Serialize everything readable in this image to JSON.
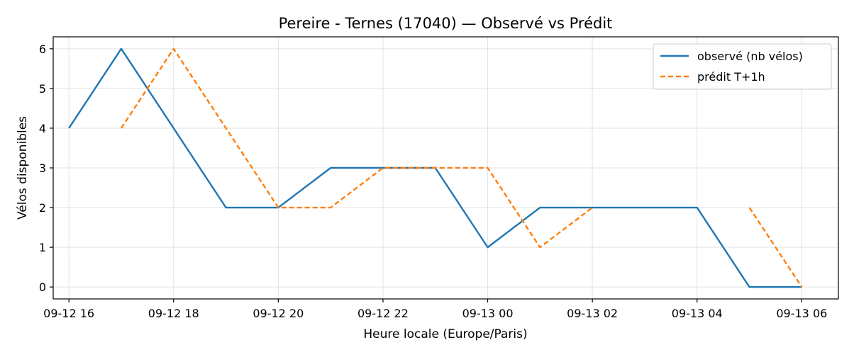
{
  "chart_data": {
    "type": "line",
    "title": "Pereire - Ternes (17040) — Observé vs Prédit",
    "xlabel": "Heure locale (Europe/Paris)",
    "ylabel": "Vélos disponibles",
    "x_ticks": [
      "09-12 16",
      "09-12 18",
      "09-12 20",
      "09-12 22",
      "09-13 00",
      "09-13 02",
      "09-13 04",
      "09-13 06"
    ],
    "y_ticks": [
      "0",
      "1",
      "2",
      "3",
      "4",
      "5",
      "6"
    ],
    "xlim": [
      "2025-09-12 15:42",
      "2025-09-13 06:42"
    ],
    "ylim": [
      -0.3,
      6.3
    ],
    "grid": true,
    "legend_position": "top-right",
    "series": [
      {
        "name": "observé (nb vélos)",
        "color": "#1f77b4",
        "style": "solid",
        "points": [
          {
            "x": "2025-09-12 16:00",
            "y": 4
          },
          {
            "x": "2025-09-12 17:00",
            "y": 6
          },
          {
            "x": "2025-09-12 18:00",
            "y": 4
          },
          {
            "x": "2025-09-12 19:00",
            "y": 2
          },
          {
            "x": "2025-09-12 20:00",
            "y": 2
          },
          {
            "x": "2025-09-12 21:00",
            "y": 3
          },
          {
            "x": "2025-09-12 22:00",
            "y": 3
          },
          {
            "x": "2025-09-12 23:00",
            "y": 3
          },
          {
            "x": "2025-09-13 00:00",
            "y": 1
          },
          {
            "x": "2025-09-13 01:00",
            "y": 2
          },
          {
            "x": "2025-09-13 02:00",
            "y": 2
          },
          {
            "x": "2025-09-13 03:00",
            "y": 2
          },
          {
            "x": "2025-09-13 04:00",
            "y": 2
          },
          {
            "x": "2025-09-13 05:00",
            "y": 0
          },
          {
            "x": "2025-09-13 06:00",
            "y": 0
          }
        ]
      },
      {
        "name": "prédit T+1h",
        "color": "#ff7f0e",
        "style": "dashed",
        "points": [
          {
            "x": "2025-09-12 17:00",
            "y": 4
          },
          {
            "x": "2025-09-12 18:00",
            "y": 6
          },
          {
            "x": "2025-09-12 19:00",
            "y": 4
          },
          {
            "x": "2025-09-12 20:00",
            "y": 2
          },
          {
            "x": "2025-09-12 21:00",
            "y": 2
          },
          {
            "x": "2025-09-12 22:00",
            "y": 3
          },
          {
            "x": "2025-09-12 23:00",
            "y": 3
          },
          {
            "x": "2025-09-13 00:00",
            "y": 3
          },
          {
            "x": "2025-09-13 01:00",
            "y": 1
          },
          {
            "x": "2025-09-13 02:00",
            "y": 2
          },
          {
            "x": "2025-09-13 03:00",
            "y": null
          },
          {
            "x": "2025-09-13 04:00",
            "y": null
          },
          {
            "x": "2025-09-13 05:00",
            "y": 2
          },
          {
            "x": "2025-09-13 06:00",
            "y": 0
          }
        ]
      }
    ]
  }
}
